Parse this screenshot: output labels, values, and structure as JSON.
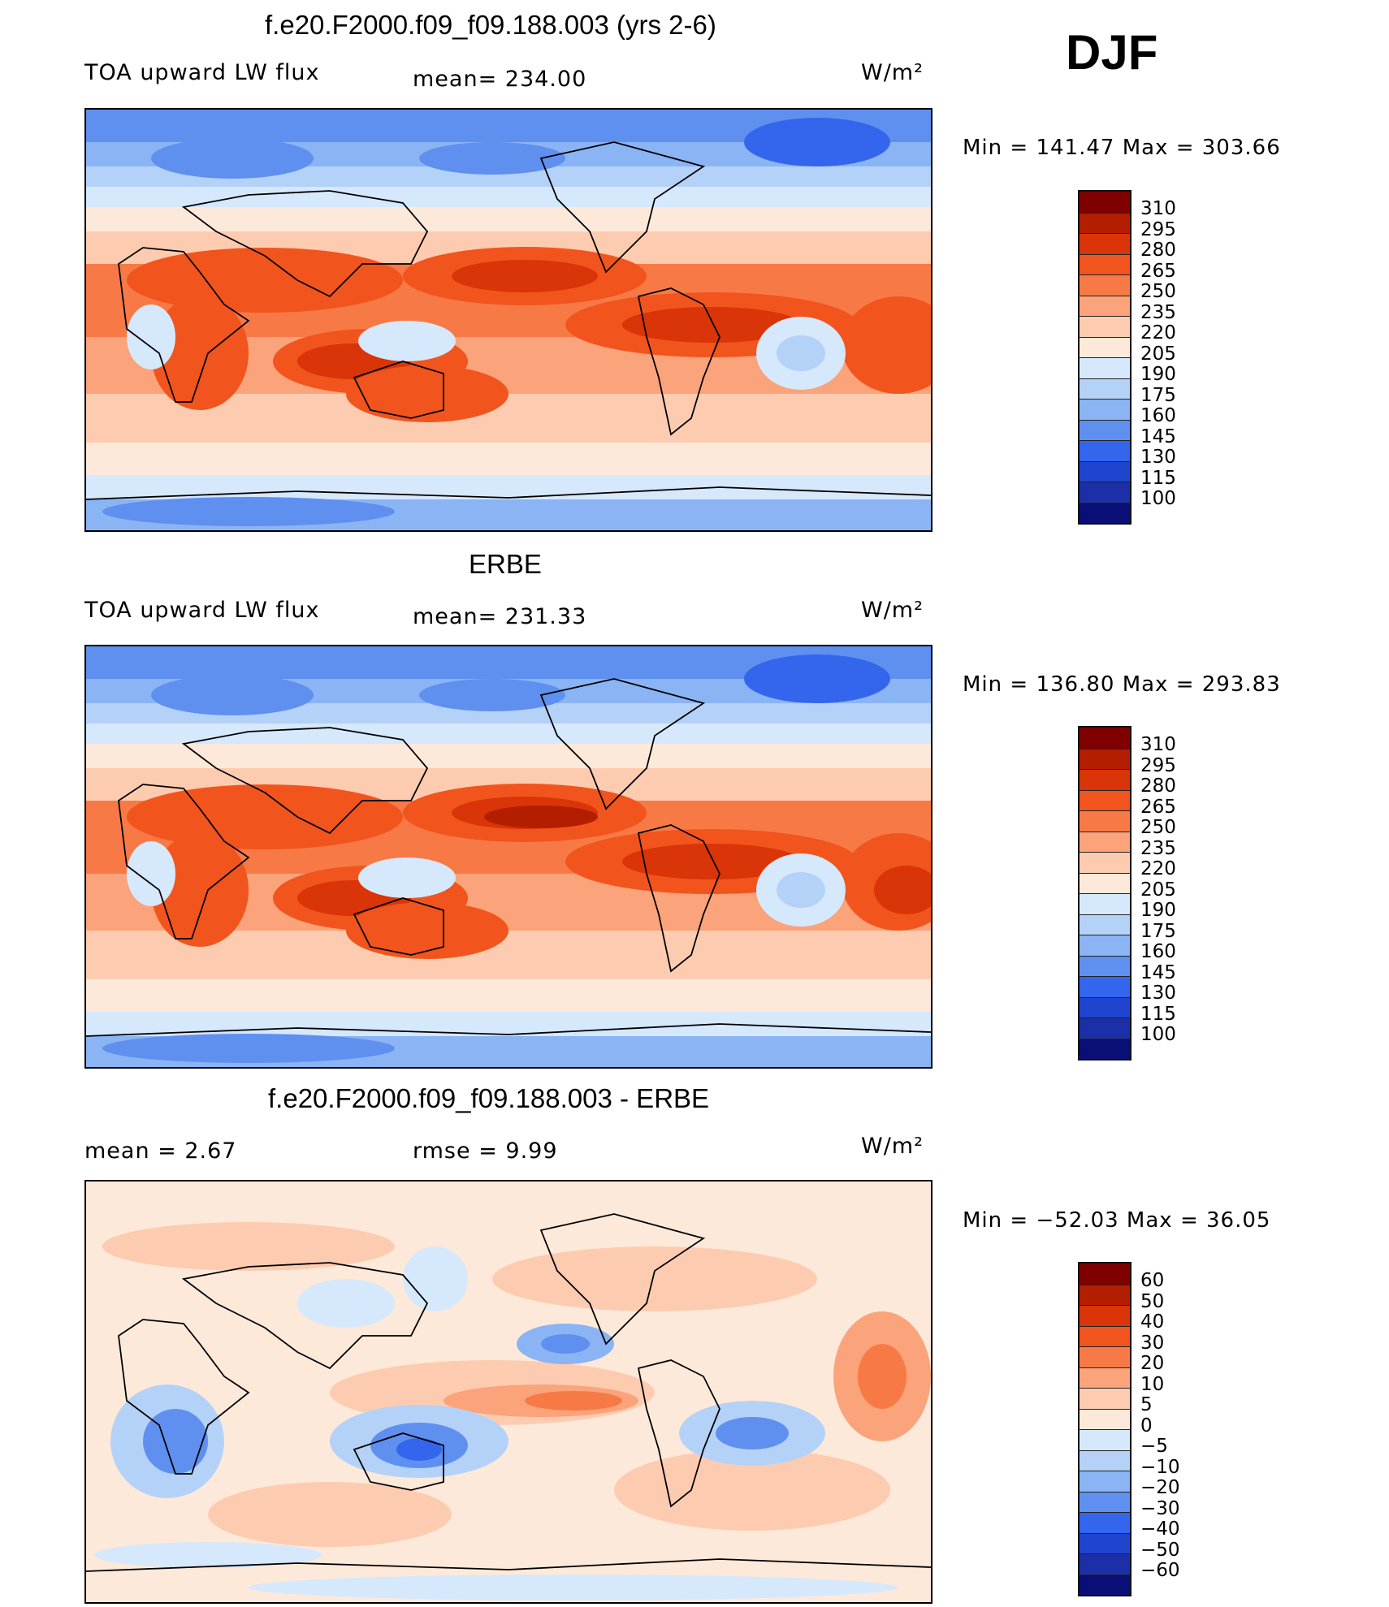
{
  "season": "DJF",
  "panels": [
    {
      "title": "f.e20.F2000.f09_f09.188.003 (yrs 2-6)",
      "left_label": "TOA upward LW flux",
      "mid_label": "mean= 234.00",
      "units": "W/m²",
      "min_max": "Min = 141.47 Max = 303.66",
      "colorbar": {
        "ticks": [
          "310",
          "295",
          "280",
          "265",
          "250",
          "235",
          "220",
          "205",
          "190",
          "175",
          "160",
          "145",
          "130",
          "115",
          "100"
        ],
        "colors": [
          "#800000",
          "#b31d00",
          "#d93508",
          "#f2541e",
          "#f77a46",
          "#fba37a",
          "#fdccb0",
          "#fde9da",
          "#d6e8fb",
          "#b4d2f8",
          "#8ab4f4",
          "#5f90ef",
          "#3366ec",
          "#1f45cf",
          "#1a2fa8",
          "#0a0f78"
        ]
      },
      "field": "model"
    },
    {
      "title": "ERBE",
      "left_label": "TOA upward LW flux",
      "mid_label": "mean= 231.33",
      "units": "W/m²",
      "min_max": "Min = 136.80 Max = 293.83",
      "colorbar": {
        "ticks": [
          "310",
          "295",
          "280",
          "265",
          "250",
          "235",
          "220",
          "205",
          "190",
          "175",
          "160",
          "145",
          "130",
          "115",
          "100"
        ],
        "colors": [
          "#800000",
          "#b31d00",
          "#d93508",
          "#f2541e",
          "#f77a46",
          "#fba37a",
          "#fdccb0",
          "#fde9da",
          "#d6e8fb",
          "#b4d2f8",
          "#8ab4f4",
          "#5f90ef",
          "#3366ec",
          "#1f45cf",
          "#1a2fa8",
          "#0a0f78"
        ]
      },
      "field": "obs"
    },
    {
      "title": "f.e20.F2000.f09_f09.188.003 - ERBE",
      "left_label": "mean =    2.67",
      "mid_label": "rmse =    9.99",
      "units": "W/m²",
      "min_max": "Min = −52.03 Max =   36.05",
      "colorbar": {
        "ticks": [
          "60",
          "50",
          "40",
          "30",
          "20",
          "10",
          "5",
          "0",
          "−5",
          "−10",
          "−20",
          "−30",
          "−40",
          "−50",
          "−60"
        ],
        "colors": [
          "#800000",
          "#b31d00",
          "#d93508",
          "#f2541e",
          "#f77a46",
          "#fba37a",
          "#fdccb0",
          "#fde9da",
          "#d6e8fb",
          "#b4d2f8",
          "#8ab4f4",
          "#5f90ef",
          "#3366ec",
          "#1f45cf",
          "#1a2fa8",
          "#0a0f78"
        ]
      },
      "field": "diff"
    }
  ]
}
